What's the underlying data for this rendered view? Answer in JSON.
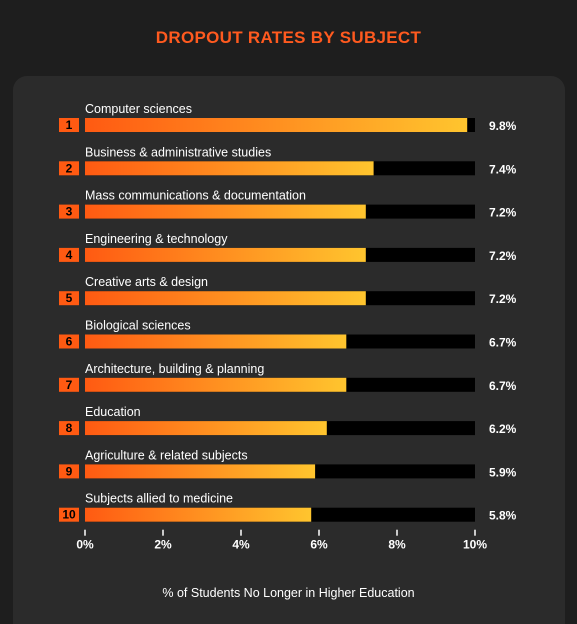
{
  "colors": {
    "title": "#ff5a1f",
    "bar_start": "#ff5a12",
    "bar_end": "#ffc52e",
    "track": "#000000",
    "rank_badge": "#ff5a12"
  },
  "chart_data": {
    "type": "bar",
    "orientation": "horizontal",
    "title": "DROPOUT RATES BY SUBJECT",
    "xlabel": "% of Students No Longer in Higher Education",
    "ylabel": "",
    "xlim": [
      0,
      10
    ],
    "ticks": [
      "0%",
      "2%",
      "4%",
      "6%",
      "8%",
      "10%"
    ],
    "tick_values": [
      0,
      2,
      4,
      6,
      8,
      10
    ],
    "grid": false,
    "categories": [
      "Computer sciences",
      "Business & administrative studies",
      "Mass communications & documentation",
      "Engineering & technology",
      "Creative arts & design",
      "Biological sciences",
      "Architecture, building & planning",
      "Education",
      "Agriculture & related subjects",
      "Subjects allied to medicine"
    ],
    "ranks": [
      "1",
      "2",
      "3",
      "4",
      "5",
      "6",
      "7",
      "8",
      "9",
      "10"
    ],
    "values": [
      9.8,
      7.4,
      7.2,
      7.2,
      7.2,
      6.7,
      6.7,
      6.2,
      5.9,
      5.8
    ],
    "value_labels": [
      "9.8%",
      "7.4%",
      "7.2%",
      "7.2%",
      "7.2%",
      "6.7%",
      "6.7%",
      "6.2%",
      "5.9%",
      "5.8%"
    ]
  }
}
